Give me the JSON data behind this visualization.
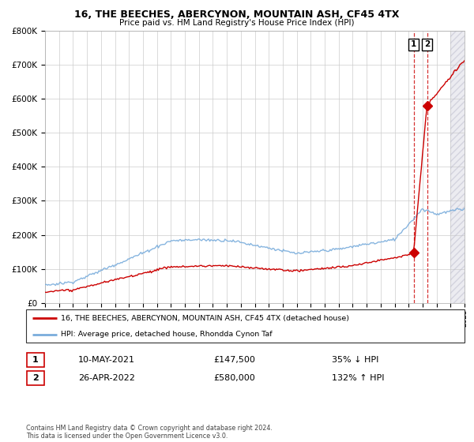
{
  "title": "16, THE BEECHES, ABERCYNON, MOUNTAIN ASH, CF45 4TX",
  "subtitle": "Price paid vs. HM Land Registry's House Price Index (HPI)",
  "hpi_color": "#7aaddc",
  "price_color": "#cc0000",
  "marker_color": "#cc0000",
  "grid_color": "#cccccc",
  "sale1_x": 2021.36,
  "sale1_y": 147500,
  "sale2_x": 2022.32,
  "sale2_y": 580000,
  "legend_line1": "16, THE BEECHES, ABERCYNON, MOUNTAIN ASH, CF45 4TX (detached house)",
  "legend_line2": "HPI: Average price, detached house, Rhondda Cynon Taf",
  "table_row1_num": "1",
  "table_row1_date": "10-MAY-2021",
  "table_row1_price": "£147,500",
  "table_row1_hpi": "35% ↓ HPI",
  "table_row2_num": "2",
  "table_row2_date": "26-APR-2022",
  "table_row2_price": "£580,000",
  "table_row2_hpi": "132% ↑ HPI",
  "footer": "Contains HM Land Registry data © Crown copyright and database right 2024.\nThis data is licensed under the Open Government Licence v3.0.",
  "xmin": 1995,
  "xmax": 2025,
  "future_start": 2024.0,
  "ylim": [
    0,
    800000
  ],
  "yticks": [
    0,
    100000,
    200000,
    300000,
    400000,
    500000,
    600000,
    700000,
    800000
  ],
  "ytick_labels": [
    "£0",
    "£100K",
    "£200K",
    "£300K",
    "£400K",
    "£500K",
    "£600K",
    "£700K",
    "£800K"
  ]
}
